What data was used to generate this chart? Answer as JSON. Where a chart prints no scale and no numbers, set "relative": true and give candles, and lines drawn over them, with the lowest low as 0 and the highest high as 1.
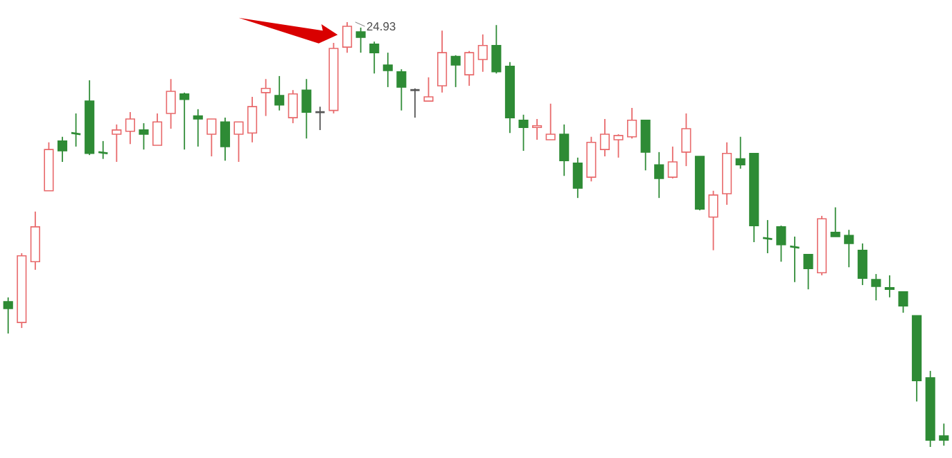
{
  "chart_data": {
    "type": "candlestick",
    "relative": true,
    "categories": [
      null,
      null,
      null,
      null,
      null,
      null,
      null,
      null,
      null,
      null,
      null,
      null,
      null,
      null,
      null,
      null,
      null,
      null,
      null,
      null,
      null,
      null,
      null,
      null,
      null,
      null,
      null,
      null,
      null,
      null,
      null,
      null,
      null,
      null,
      null,
      null,
      null,
      null,
      null,
      null,
      null,
      null,
      null,
      null,
      null,
      null,
      null,
      null,
      null,
      null,
      null,
      null,
      null,
      null,
      null,
      null,
      null,
      null,
      null,
      null,
      null,
      null,
      null,
      null,
      null,
      null,
      null,
      null,
      null,
      null
    ],
    "ohlc": [
      [
        0.342,
        0.352,
        0.267,
        0.326
      ],
      [
        0.293,
        0.456,
        0.28,
        0.45
      ],
      [
        0.436,
        0.554,
        0.417,
        0.518
      ],
      [
        0.603,
        0.717,
        0.603,
        0.7
      ],
      [
        0.72,
        0.73,
        0.671,
        0.697
      ],
      [
        0.739,
        0.785,
        0.707,
        0.736
      ],
      [
        0.814,
        0.863,
        0.687,
        0.691
      ],
      [
        0.694,
        0.72,
        0.678,
        0.691
      ],
      [
        0.736,
        0.759,
        0.671,
        0.746
      ],
      [
        0.743,
        0.788,
        0.713,
        0.772
      ],
      [
        0.746,
        0.762,
        0.7,
        0.736
      ],
      [
        0.71,
        0.785,
        0.71,
        0.765
      ],
      [
        0.785,
        0.866,
        0.749,
        0.837
      ],
      [
        0.831,
        0.834,
        0.7,
        0.818
      ],
      [
        0.779,
        0.795,
        0.707,
        0.772
      ],
      [
        0.736,
        0.772,
        0.684,
        0.772
      ],
      [
        0.765,
        0.775,
        0.674,
        0.707
      ],
      [
        0.736,
        0.765,
        0.671,
        0.765
      ],
      [
        0.739,
        0.824,
        0.717,
        0.801
      ],
      [
        0.834,
        0.866,
        0.779,
        0.844
      ],
      [
        0.827,
        0.873,
        0.792,
        0.805
      ],
      [
        0.775,
        0.84,
        0.762,
        0.831
      ],
      [
        0.84,
        0.866,
        0.726,
        0.788
      ],
      [
        0.788,
        0.801,
        0.746,
        0.788
      ],
      [
        0.792,
        0.951,
        0.785,
        0.938
      ],
      [
        0.941,
        1,
        0.928,
        0.99
      ],
      [
        0.977,
        0.987,
        0.928,
        0.964
      ],
      [
        0.948,
        0.954,
        0.879,
        0.928
      ],
      [
        0.899,
        0.928,
        0.847,
        0.886
      ],
      [
        0.883,
        0.889,
        0.792,
        0.847
      ],
      [
        0.84,
        0.844,
        0.775,
        0.84
      ],
      [
        0.814,
        0.87,
        0.814,
        0.824
      ],
      [
        0.85,
        0.98,
        0.834,
        0.928
      ],
      [
        0.919,
        0.922,
        0.847,
        0.899
      ],
      [
        0.876,
        0.932,
        0.85,
        0.928
      ],
      [
        0.912,
        0.971,
        0.883,
        0.945
      ],
      [
        0.945,
        0.993,
        0.879,
        0.883
      ],
      [
        0.896,
        0.906,
        0.739,
        0.775
      ],
      [
        0.769,
        0.782,
        0.697,
        0.752
      ],
      [
        0.752,
        0.772,
        0.723,
        0.756
      ],
      [
        0.723,
        0.808,
        0.723,
        0.736
      ],
      [
        0.736,
        0.759,
        0.638,
        0.674
      ],
      [
        0.668,
        0.681,
        0.586,
        0.609
      ],
      [
        0.635,
        0.73,
        0.625,
        0.717
      ],
      [
        0.7,
        0.772,
        0.684,
        0.736
      ],
      [
        0.723,
        0.736,
        0.681,
        0.733
      ],
      [
        0.73,
        0.798,
        0.726,
        0.769
      ],
      [
        0.769,
        0.769,
        0.651,
        0.694
      ],
      [
        0.664,
        0.694,
        0.586,
        0.632
      ],
      [
        0.635,
        0.707,
        0.632,
        0.671
      ],
      [
        0.694,
        0.785,
        0.661,
        0.749
      ],
      [
        0.684,
        0.684,
        0.557,
        0.56
      ],
      [
        0.541,
        0.603,
        0.463,
        0.593
      ],
      [
        0.596,
        0.717,
        0.57,
        0.691
      ],
      [
        0.678,
        0.73,
        0.655,
        0.664
      ],
      [
        0.691,
        0.691,
        0.482,
        0.521
      ],
      [
        0.492,
        0.534,
        0.456,
        0.489
      ],
      [
        0.518,
        0.521,
        0.436,
        0.476
      ],
      [
        0.472,
        0.495,
        0.388,
        0.469
      ],
      [
        0.453,
        0.453,
        0.371,
        0.42
      ],
      [
        0.41,
        0.544,
        0.404,
        0.537
      ],
      [
        0.505,
        0.564,
        0.495,
        0.495
      ],
      [
        0.498,
        0.511,
        0.423,
        0.479
      ],
      [
        0.463,
        0.479,
        0.381,
        0.397
      ],
      [
        0.394,
        0.407,
        0.345,
        0.378
      ],
      [
        0.375,
        0.404,
        0.352,
        0.371
      ],
      [
        0.365,
        0.365,
        0.316,
        0.332
      ],
      [
        0.309,
        0.309,
        0.107,
        0.156
      ],
      [
        0.163,
        0.179,
        0,
        0.016
      ],
      [
        0.026,
        0.055,
        0.003,
        0.016
      ]
    ],
    "colors": [
      "#2e8b35",
      "#e8686a",
      "#e8686a",
      "#e8686a",
      "#2e8b35",
      "#2e8b35",
      "#2e8b35",
      "#2e8b35",
      "#e8686a",
      "#e8686a",
      "#2e8b35",
      "#e8686a",
      "#e8686a",
      "#2e8b35",
      "#2e8b35",
      "#e8686a",
      "#2e8b35",
      "#e8686a",
      "#e8686a",
      "#e8686a",
      "#2e8b35",
      "#e8686a",
      "#2e8b35",
      "#555555",
      "#e8686a",
      "#e8686a",
      "#2e8b35",
      "#2e8b35",
      "#2e8b35",
      "#2e8b35",
      "#555555",
      "#e8686a",
      "#e8686a",
      "#2e8b35",
      "#e8686a",
      "#e8686a",
      "#2e8b35",
      "#2e8b35",
      "#2e8b35",
      "#e8686a",
      "#e8686a",
      "#2e8b35",
      "#2e8b35",
      "#e8686a",
      "#e8686a",
      "#e8686a",
      "#e8686a",
      "#2e8b35",
      "#2e8b35",
      "#e8686a",
      "#e8686a",
      "#2e8b35",
      "#e8686a",
      "#e8686a",
      "#2e8b35",
      "#2e8b35",
      "#2e8b35",
      "#2e8b35",
      "#2e8b35",
      "#2e8b35",
      "#e8686a",
      "#2e8b35",
      "#2e8b35",
      "#2e8b35",
      "#2e8b35",
      "#2e8b35",
      "#2e8b35",
      "#2e8b35",
      "#2e8b35",
      "#2e8b35"
    ],
    "annotations": [
      "24.93"
    ]
  }
}
